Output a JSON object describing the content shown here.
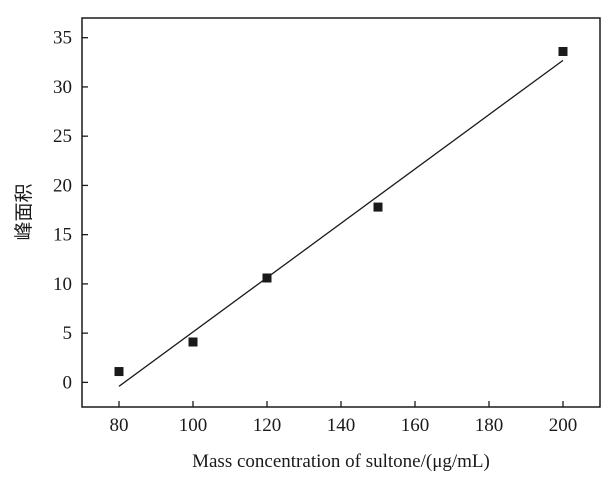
{
  "chart_data": {
    "type": "scatter",
    "xlabel": "Mass concentration of sultone/(μg/mL)",
    "ylabel": "峰面积",
    "xlim": [
      70,
      210
    ],
    "ylim": [
      -2.5,
      37
    ],
    "x_ticks": [
      80,
      100,
      120,
      140,
      160,
      180,
      200
    ],
    "y_ticks": [
      0,
      5,
      10,
      15,
      20,
      25,
      30,
      35
    ],
    "grid": false,
    "legend": "none",
    "series": [
      {
        "points": [
          {
            "x": 80,
            "y": 1.1
          },
          {
            "x": 100,
            "y": 4.1
          },
          {
            "x": 120,
            "y": 10.6
          },
          {
            "x": 150,
            "y": 17.8
          },
          {
            "x": 200,
            "y": 33.6
          }
        ],
        "color": "#1a1a1a",
        "marker": "square"
      }
    ],
    "trendline": {
      "x": [
        80,
        200
      ],
      "y": [
        -0.4,
        32.7
      ],
      "color": "#1a1a1a"
    }
  }
}
